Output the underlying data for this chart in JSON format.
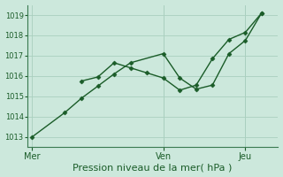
{
  "background_color": "#cce8dc",
  "grid_color": "#aacfbf",
  "line_color": "#1a5c28",
  "marker_color": "#1a5c28",
  "xlabel": "Pression niveau de la mer( hPa )",
  "xlabel_fontsize": 8,
  "ylim": [
    1012.5,
    1019.5
  ],
  "yticks": [
    1013,
    1014,
    1015,
    1016,
    1017,
    1018,
    1019
  ],
  "ytick_fontsize": 6,
  "xtick_fontsize": 7,
  "day_labels": [
    "Mer",
    "Ven",
    "Jeu"
  ],
  "day_positions": [
    0.0,
    0.533,
    0.867
  ],
  "vline_positions": [
    0.533,
    0.867
  ],
  "line1_x": [
    0.0,
    0.133,
    0.2,
    0.267,
    0.333,
    0.4,
    0.533,
    0.6,
    0.667,
    0.733,
    0.8,
    0.867,
    0.933
  ],
  "line1_y": [
    1013.0,
    1014.2,
    1014.9,
    1015.5,
    1016.1,
    1016.65,
    1017.1,
    1015.9,
    1015.35,
    1015.55,
    1017.1,
    1017.75,
    1019.1
  ],
  "line2_x": [
    0.2,
    0.267,
    0.333,
    0.4,
    0.467,
    0.533,
    0.6,
    0.667,
    0.733,
    0.8,
    0.867,
    0.933
  ],
  "line2_y": [
    1015.75,
    1015.95,
    1016.65,
    1016.4,
    1016.15,
    1015.9,
    1015.3,
    1015.55,
    1016.85,
    1017.8,
    1018.15,
    1019.1
  ],
  "xlim": [
    -0.02,
    1.0
  ],
  "linewidth": 1.0,
  "markersize": 2.5,
  "figsize": [
    3.2,
    2.0
  ],
  "dpi": 100
}
